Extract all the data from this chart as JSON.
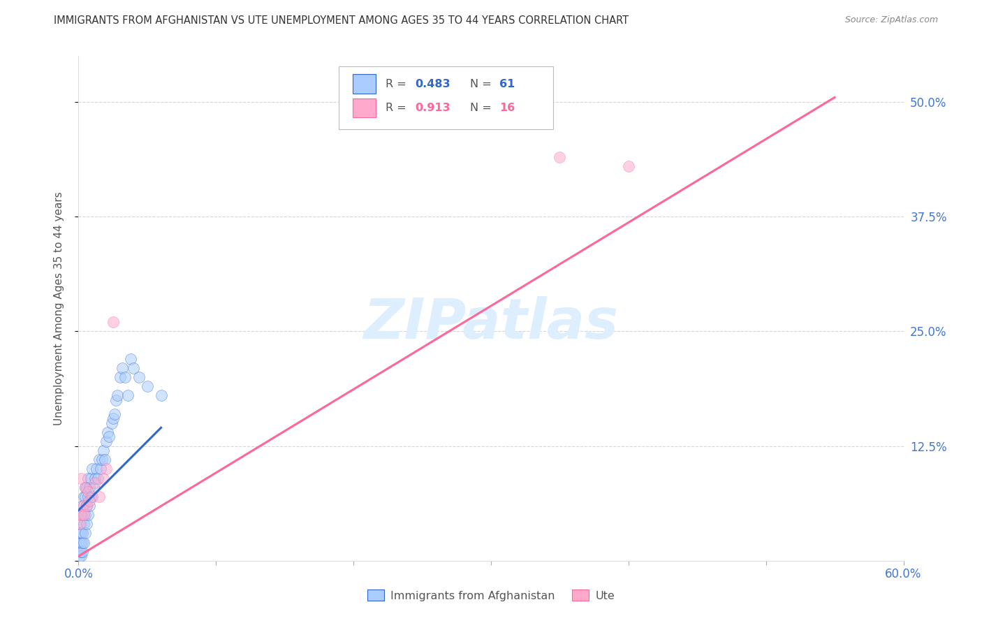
{
  "title": "IMMIGRANTS FROM AFGHANISTAN VS UTE UNEMPLOYMENT AMONG AGES 35 TO 44 YEARS CORRELATION CHART",
  "source": "Source: ZipAtlas.com",
  "ylabel": "Unemployment Among Ages 35 to 44 years",
  "legend_blue_r": "0.483",
  "legend_blue_n": "61",
  "legend_pink_r": "0.913",
  "legend_pink_n": "16",
  "watermark": "ZIPatlas",
  "xlim": [
    0.0,
    0.6
  ],
  "ylim": [
    0.0,
    0.55
  ],
  "xticks": [
    0.0,
    0.1,
    0.2,
    0.3,
    0.4,
    0.5,
    0.6
  ],
  "yticks": [
    0.0,
    0.125,
    0.25,
    0.375,
    0.5
  ],
  "ytick_labels": [
    "",
    "12.5%",
    "25.0%",
    "37.5%",
    "50.0%"
  ],
  "xtick_labels": [
    "0.0%",
    "",
    "",
    "",
    "",
    "",
    "60.0%"
  ],
  "blue_scatter_x": [
    0.001,
    0.001,
    0.001,
    0.001,
    0.002,
    0.002,
    0.002,
    0.002,
    0.002,
    0.002,
    0.003,
    0.003,
    0.003,
    0.003,
    0.003,
    0.004,
    0.004,
    0.004,
    0.004,
    0.005,
    0.005,
    0.005,
    0.005,
    0.006,
    0.006,
    0.006,
    0.007,
    0.007,
    0.007,
    0.008,
    0.008,
    0.009,
    0.009,
    0.01,
    0.01,
    0.011,
    0.012,
    0.013,
    0.014,
    0.015,
    0.016,
    0.017,
    0.018,
    0.019,
    0.02,
    0.021,
    0.022,
    0.024,
    0.025,
    0.026,
    0.027,
    0.028,
    0.03,
    0.032,
    0.034,
    0.036,
    0.038,
    0.04,
    0.044,
    0.05,
    0.06
  ],
  "blue_scatter_y": [
    0.005,
    0.01,
    0.02,
    0.03,
    0.005,
    0.01,
    0.02,
    0.03,
    0.04,
    0.05,
    0.01,
    0.02,
    0.03,
    0.05,
    0.06,
    0.02,
    0.04,
    0.06,
    0.07,
    0.03,
    0.05,
    0.07,
    0.08,
    0.04,
    0.06,
    0.08,
    0.05,
    0.07,
    0.09,
    0.06,
    0.08,
    0.07,
    0.09,
    0.07,
    0.1,
    0.08,
    0.09,
    0.1,
    0.09,
    0.11,
    0.1,
    0.11,
    0.12,
    0.11,
    0.13,
    0.14,
    0.135,
    0.15,
    0.155,
    0.16,
    0.175,
    0.18,
    0.2,
    0.21,
    0.2,
    0.18,
    0.22,
    0.21,
    0.2,
    0.19,
    0.18
  ],
  "pink_scatter_x": [
    0.001,
    0.002,
    0.002,
    0.003,
    0.004,
    0.005,
    0.006,
    0.007,
    0.008,
    0.012,
    0.015,
    0.018,
    0.02,
    0.025,
    0.35,
    0.4
  ],
  "pink_scatter_y": [
    0.04,
    0.05,
    0.09,
    0.06,
    0.05,
    0.08,
    0.06,
    0.075,
    0.065,
    0.085,
    0.07,
    0.09,
    0.1,
    0.26,
    0.44,
    0.43
  ],
  "blue_line_x": [
    0.0,
    0.06
  ],
  "blue_line_y": [
    0.055,
    0.145
  ],
  "pink_line_x": [
    0.0,
    0.55
  ],
  "pink_line_y": [
    0.005,
    0.505
  ],
  "dashed_line_x": [
    0.0,
    0.55
  ],
  "dashed_line_y": [
    0.005,
    0.505
  ],
  "bg_color": "#ffffff",
  "grid_color": "#cccccc",
  "blue_color": "#aaccff",
  "blue_line_color": "#3366cc",
  "pink_color": "#ffaacc",
  "pink_line_color": "#ff6699",
  "dashed_line_color": "#aabbdd",
  "axis_label_color": "#4477cc",
  "title_color": "#333333",
  "source_color": "#888888",
  "watermark_color": "#ddeeff"
}
